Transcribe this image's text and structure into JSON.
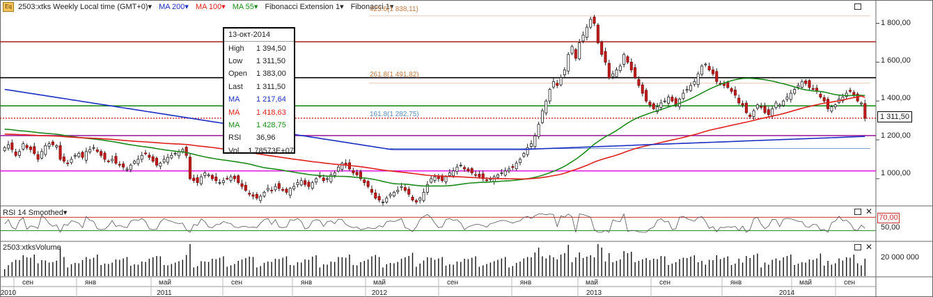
{
  "toolbar": {
    "icon_text": "Eq",
    "instrument": "2503:xtks Weekly Local time (GMT+0)▾",
    "ma200": "MA 200▾",
    "ma100": "MA 100▾",
    "ma55": "MA 55▾",
    "fib_ext": "Fibonacci Extension 1▾",
    "fib": "Fibonacci 1▾"
  },
  "colors": {
    "ma200": "#1c2fc4",
    "ma100": "#e0201c",
    "ma55": "#1c8a1c",
    "fib": "#c07840",
    "rsi_line": "#c33"
  },
  "info": {
    "date": "13-окт-2014",
    "rows": [
      {
        "label": "High",
        "value": "1 394,50",
        "color": "#222"
      },
      {
        "label": "Low",
        "value": "1 311,50",
        "color": "#222"
      },
      {
        "label": "Open",
        "value": "1 383,00",
        "color": "#222"
      },
      {
        "label": "Last",
        "value": "1 311,50",
        "color": "#222"
      },
      {
        "label": "MA",
        "value": "1 217,64",
        "color": "#1c2fc4"
      },
      {
        "label": "MA",
        "value": "1 418,63",
        "color": "#e0201c"
      },
      {
        "label": "MA",
        "value": "1 428,75",
        "color": "#1c8a1c"
      },
      {
        "label": "RSI",
        "value": "36,96",
        "color": "#222"
      },
      {
        "label": "Vol",
        "value": "1,78573E+07",
        "color": "#222"
      }
    ]
  },
  "fib_labels": {
    "l423": "423.6(1 838,11)",
    "l261": "261.8(1 491,82)",
    "l161": "161.8(1 282,75)"
  },
  "last_price": "1 311,50",
  "rsi": {
    "title": "RSI 14 Smoothed▾",
    "level_label": "70,00",
    "tick": "50,00",
    "level": 70
  },
  "volume": {
    "title": "2503:xtksVolume",
    "tick": "20 000 000"
  },
  "chart_data": {
    "type": "candlestick",
    "x_months": [
      "сен",
      "янв",
      "май",
      "сен",
      "янв",
      "май",
      "сен",
      "янв",
      "май",
      "сен",
      "янв",
      "май",
      "сен"
    ],
    "x_years": [
      "2010",
      "2011",
      "2012",
      "2013",
      "2014"
    ],
    "y_ticks": [
      "1 800,00",
      "1 600,00",
      "1 400,00",
      "1 200,00",
      "1 000,00"
    ],
    "ylim": [
      860,
      1920
    ],
    "horizontal_levels": [
      {
        "value": 1705,
        "color": "#b03030"
      },
      {
        "value": 1520,
        "color": "#000000"
      },
      {
        "value": 1375,
        "color": "#1c8a1c"
      },
      {
        "value": 1311.5,
        "color": "#c02020",
        "dashed": true
      },
      {
        "value": 1222,
        "color": "#a020a0"
      },
      {
        "value": 1040,
        "color": "#e020e0"
      }
    ],
    "closes": [
      1160,
      1175,
      1150,
      1120,
      1140,
      1180,
      1160,
      1150,
      1130,
      1100,
      1140,
      1170,
      1180,
      1175,
      1170,
      1100,
      1090,
      1080,
      1100,
      1120,
      1130,
      1110,
      1140,
      1150,
      1160,
      1140,
      1120,
      1100,
      1090,
      1100,
      1080,
      1070,
      1060,
      1050,
      1070,
      1090,
      1100,
      1120,
      1130,
      1110,
      1090,
      1070,
      1080,
      1100,
      1110,
      1120,
      1130,
      1140,
      1150,
      1120,
      1000,
      990,
      980,
      1010,
      1030,
      1020,
      1000,
      990,
      980,
      990,
      1000,
      1010,
      1000,
      980,
      960,
      940,
      920,
      910,
      900,
      910,
      930,
      950,
      940,
      960,
      950,
      940,
      930,
      950,
      960,
      980,
      990,
      970,
      960,
      980,
      1000,
      1010,
      990,
      1000,
      1020,
      1030,
      1060,
      1080,
      1070,
      1050,
      1030,
      1020,
      1000,
      980,
      960,
      930,
      900,
      890,
      880,
      900,
      920,
      930,
      940,
      960,
      940,
      920,
      890,
      880,
      900,
      930,
      970,
      1000,
      1010,
      1000,
      990,
      1010,
      1030,
      1040,
      1060,
      1070,
      1050,
      1040,
      1030,
      1020,
      1010,
      1000,
      990,
      1000,
      1010,
      1020,
      1030,
      1040,
      1050,
      1060,
      1080,
      1100,
      1130,
      1160,
      1180,
      1220,
      1280,
      1350,
      1400,
      1460,
      1500,
      1480,
      1520,
      1560,
      1640,
      1680,
      1620,
      1700,
      1740,
      1780,
      1820,
      1800,
      1700,
      1640,
      1600,
      1520,
      1540,
      1560,
      1580,
      1640,
      1600,
      1560,
      1520,
      1480,
      1440,
      1400,
      1380,
      1360,
      1370,
      1390,
      1400,
      1420,
      1400,
      1380,
      1410,
      1440,
      1460,
      1480,
      1500,
      1540,
      1580,
      1590,
      1560,
      1540,
      1500,
      1490,
      1480,
      1470,
      1450,
      1430,
      1390,
      1380,
      1340,
      1320,
      1350,
      1380,
      1370,
      1340,
      1330,
      1360,
      1390,
      1380,
      1400,
      1420,
      1440,
      1460,
      1480,
      1500,
      1490,
      1470,
      1460,
      1450,
      1420,
      1400,
      1360,
      1370,
      1380,
      1410,
      1420,
      1440,
      1450,
      1430,
      1400,
      1390,
      1311.5
    ],
    "ma55": {
      "from": 1255,
      "to": 1428.75
    },
    "ma100": {
      "from": 1230,
      "to": 1418.63
    },
    "ma200": {
      "from": 1460,
      "to": 1217.64
    },
    "rsi_last": 36.96,
    "volume_last": 17857300
  }
}
